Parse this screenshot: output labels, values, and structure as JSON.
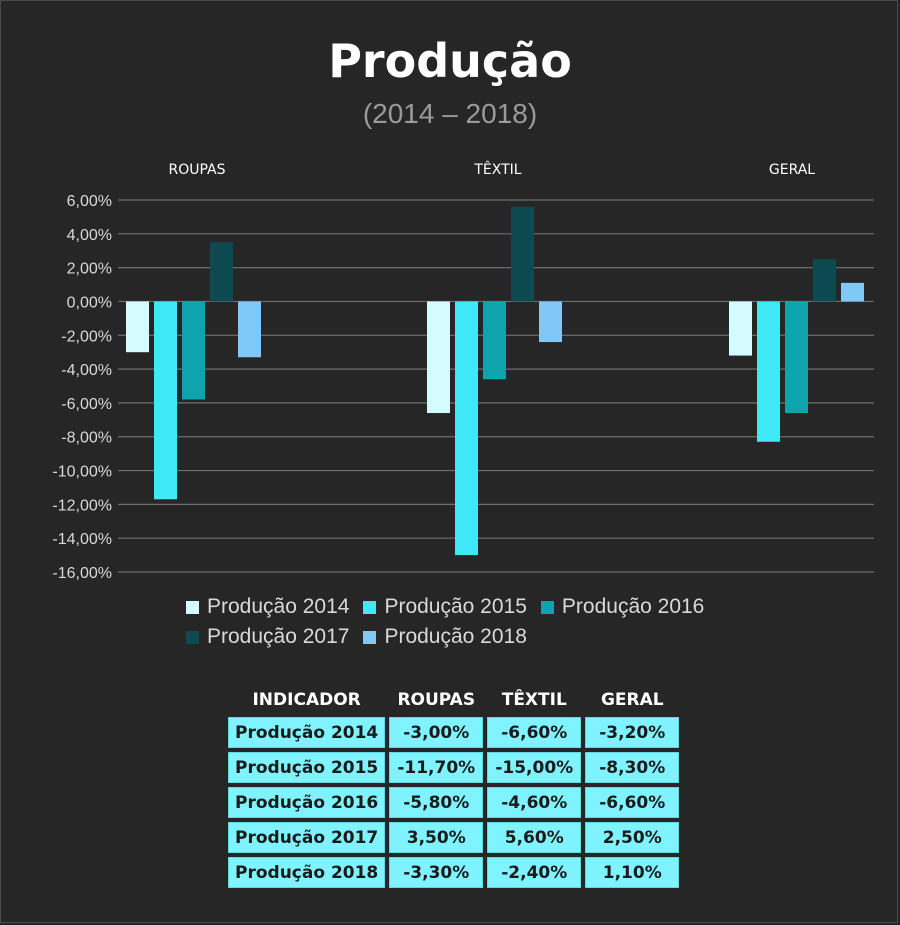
{
  "title": "Produção",
  "subtitle": "(2014 – 2018)",
  "chart_data": {
    "type": "bar",
    "categories": [
      "ROUPAS",
      "TÊXTIL",
      "GERAL"
    ],
    "series": [
      {
        "name": "Produção 2014",
        "values": [
          -3.0,
          -6.6,
          -3.2
        ],
        "color": "#d4fbff"
      },
      {
        "name": "Produção 2015",
        "values": [
          -11.7,
          -15.0,
          -8.3
        ],
        "color": "#3ee8f7"
      },
      {
        "name": "Produção 2016",
        "values": [
          -5.8,
          -4.6,
          -6.6
        ],
        "color": "#0fa3ad"
      },
      {
        "name": "Produção 2017",
        "values": [
          3.5,
          5.6,
          2.5
        ],
        "color": "#0d4950"
      },
      {
        "name": "Produção 2018",
        "values": [
          -3.3,
          -2.4,
          1.1
        ],
        "color": "#7fc8f8"
      }
    ],
    "ylim": [
      -16,
      6
    ],
    "yticks": [
      "6,00%",
      "4,00%",
      "2,00%",
      "0,00%",
      "-2,00%",
      "-4,00%",
      "-6,00%",
      "-8,00%",
      "-10,00%",
      "-12,00%",
      "-14,00%",
      "-16,00%"
    ],
    "ytick_values": [
      6,
      4,
      2,
      0,
      -2,
      -4,
      -6,
      -8,
      -10,
      -12,
      -14,
      -16
    ],
    "grid": true,
    "legend_position": "bottom"
  },
  "table": {
    "headers": [
      "INDICADOR",
      "ROUPAS",
      "TÊXTIL",
      "GERAL"
    ],
    "rows": [
      [
        "Produção 2014",
        "-3,00%",
        "-6,60%",
        "-3,20%"
      ],
      [
        "Produção 2015",
        "-11,70%",
        "-15,00%",
        "-8,30%"
      ],
      [
        "Produção 2016",
        "-5,80%",
        "-4,60%",
        "-6,60%"
      ],
      [
        "Produção 2017",
        "3,50%",
        "5,60%",
        "2,50%"
      ],
      [
        "Produção 2018",
        "-3,30%",
        "-2,40%",
        "1,10%"
      ]
    ]
  }
}
